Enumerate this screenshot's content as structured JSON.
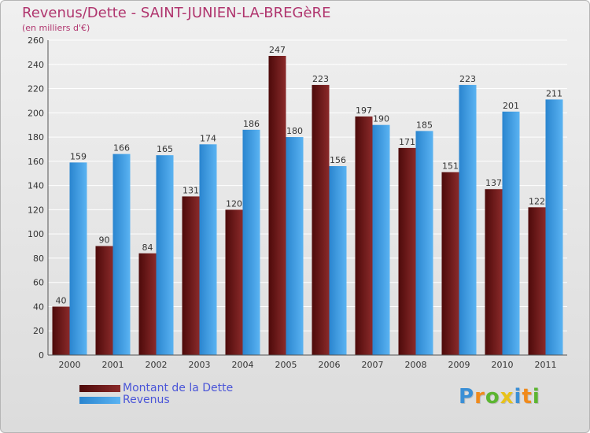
{
  "title": "Revenus/Dette - SAINT-JUNIEN-LA-BREGèRE",
  "subtitle": "(en milliers d'€)",
  "logo_text": "Proxiti",
  "colors": {
    "title": "#b0356e",
    "dette": "#6e1414",
    "revenus": "#3e9ee6",
    "legend_text": "#4a55d8"
  },
  "chart_data": {
    "type": "bar",
    "title": "Revenus/Dette - SAINT-JUNIEN-LA-BREGèRE",
    "subtitle": "(en milliers d'€)",
    "xlabel": "",
    "ylabel": "",
    "categories": [
      "2000",
      "2001",
      "2002",
      "2003",
      "2004",
      "2005",
      "2006",
      "2007",
      "2008",
      "2009",
      "2010",
      "2011"
    ],
    "series": [
      {
        "name": "Montant de la Dette",
        "values": [
          40,
          90,
          84,
          131,
          120,
          247,
          223,
          197,
          171,
          151,
          137,
          122
        ]
      },
      {
        "name": "Revenus",
        "values": [
          159,
          166,
          165,
          174,
          186,
          180,
          156,
          190,
          185,
          223,
          201,
          211
        ]
      }
    ],
    "ylim": [
      0,
      260
    ],
    "yticks": [
      0,
      20,
      40,
      60,
      80,
      100,
      120,
      140,
      160,
      180,
      200,
      220,
      240,
      260
    ],
    "grid": true,
    "legend_position": "bottom-left",
    "data_labels": true
  }
}
